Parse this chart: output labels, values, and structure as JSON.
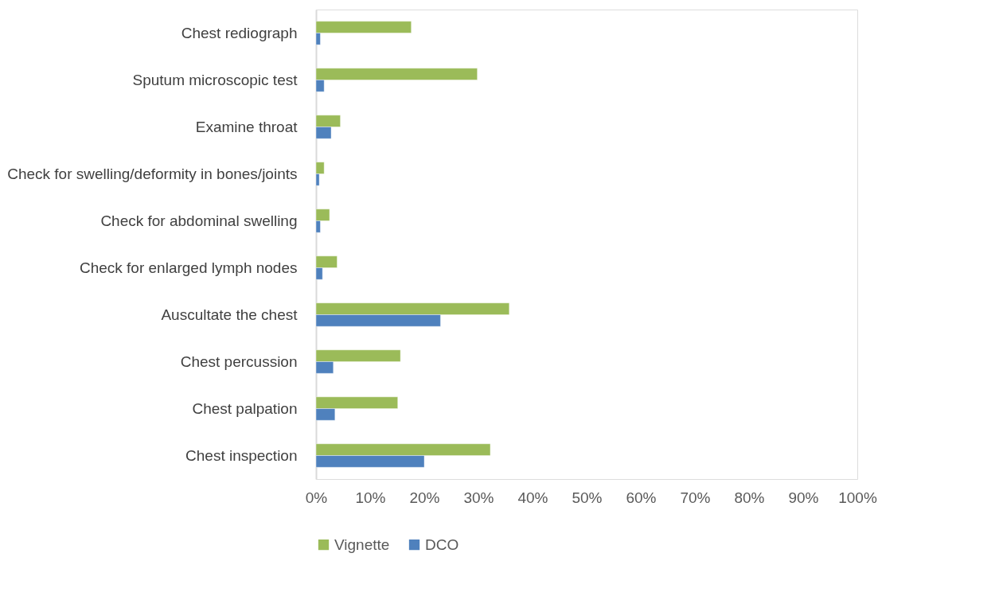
{
  "chart_data": {
    "type": "bar",
    "orientation": "horizontal",
    "categories": [
      "Chest rediograph",
      "Sputum microscopic test",
      "Examine throat",
      "Check for swelling/deformity in bones/joints",
      "Check for abdominal swelling",
      "Check for enlarged lymph nodes",
      "Auscultate the chest",
      "Chest percussion ",
      "Chest palpation",
      "Chest inspection"
    ],
    "series": [
      {
        "name": "Vignette",
        "color": "#9bbb59",
        "values": [
          17.6,
          29.8,
          4.5,
          1.5,
          2.5,
          3.9,
          35.7,
          15.6,
          15.1,
          32.2
        ]
      },
      {
        "name": "DCO",
        "color": "#4f81bd",
        "values": [
          0.8,
          1.5,
          2.8,
          0.6,
          0.8,
          1.2,
          23.0,
          3.2,
          3.5,
          20.0
        ]
      }
    ],
    "xlim": [
      0,
      100
    ],
    "xticks": [
      {
        "value": 0,
        "label": "0%"
      },
      {
        "value": 10,
        "label": "10%"
      },
      {
        "value": 20,
        "label": "20%"
      },
      {
        "value": 30,
        "label": "30%"
      },
      {
        "value": 40,
        "label": "40%"
      },
      {
        "value": 50,
        "label": "50%"
      },
      {
        "value": 60,
        "label": "60%"
      },
      {
        "value": 70,
        "label": "70%"
      },
      {
        "value": 80,
        "label": "80%"
      },
      {
        "value": 90,
        "label": "90%"
      },
      {
        "value": 100,
        "label": "100%"
      }
    ],
    "grid": false,
    "legend": "bottom"
  }
}
